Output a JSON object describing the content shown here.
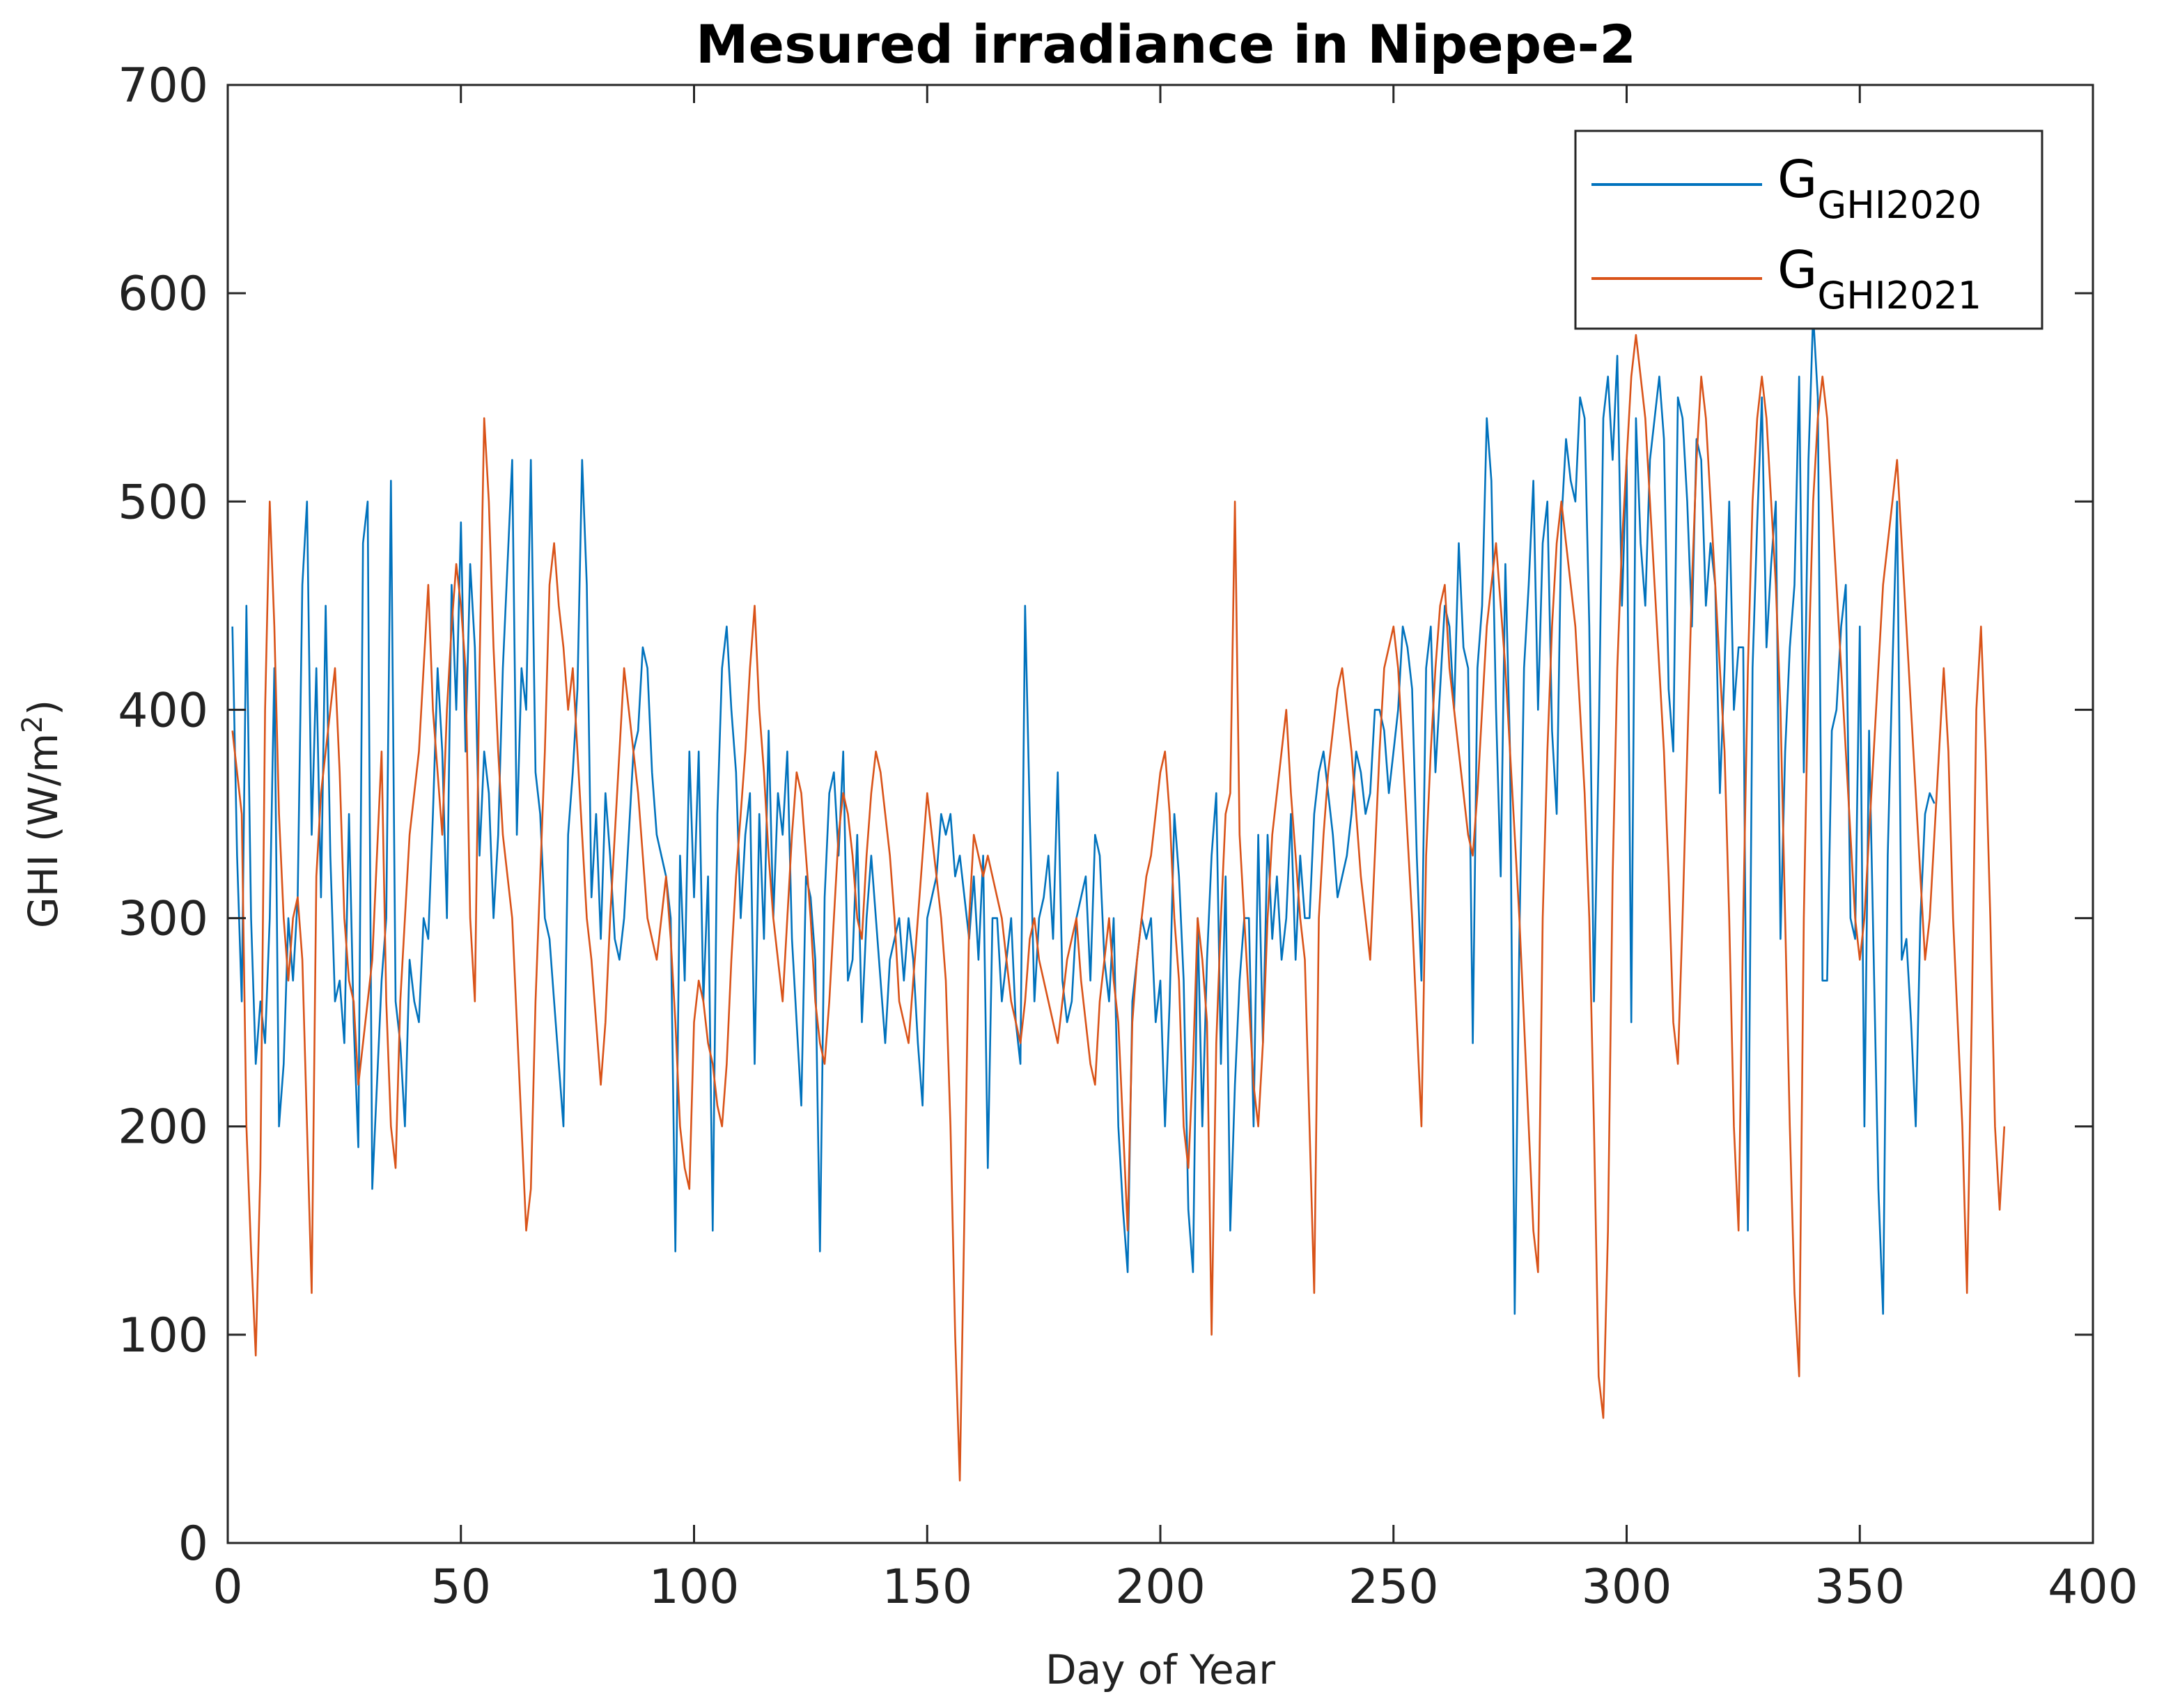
{
  "chart_data": {
    "type": "line",
    "title": "Mesured irradiance in Nipepe-2",
    "xlabel": "Day of Year",
    "ylabel": "GHI (W/m",
    "ylabel_sup": "2",
    "ylabel_close": ")",
    "xlim": [
      0,
      400
    ],
    "ylim": [
      0,
      700
    ],
    "xticks": [
      0,
      50,
      100,
      150,
      200,
      250,
      300,
      350,
      400
    ],
    "yticks": [
      0,
      100,
      200,
      300,
      400,
      500,
      600,
      700
    ],
    "grid": false,
    "legend_position": "top-right",
    "series": [
      {
        "name": "GGHI2020",
        "label_main": "G",
        "label_sub": "GHI2020",
        "color": "#0072BD",
        "x_start": 1,
        "values": [
          440,
          330,
          260,
          450,
          300,
          230,
          260,
          240,
          300,
          420,
          200,
          230,
          300,
          270,
          310,
          460,
          500,
          340,
          420,
          310,
          450,
          330,
          260,
          270,
          240,
          350,
          250,
          190,
          480,
          500,
          170,
          220,
          270,
          300,
          510,
          260,
          240,
          200,
          280,
          260,
          250,
          300,
          290,
          350,
          420,
          380,
          300,
          460,
          400,
          490,
          380,
          470,
          430,
          330,
          380,
          360,
          300,
          340,
          420,
          470,
          520,
          340,
          420,
          400,
          520,
          370,
          350,
          300,
          290,
          260,
          230,
          200,
          340,
          370,
          410,
          520,
          460,
          310,
          350,
          290,
          360,
          330,
          290,
          280,
          300,
          340,
          380,
          390,
          430,
          420,
          370,
          340,
          330,
          320,
          300,
          140,
          330,
          270,
          380,
          310,
          380,
          260,
          320,
          150,
          350,
          420,
          440,
          400,
          370,
          300,
          340,
          360,
          230,
          350,
          290,
          390,
          300,
          360,
          340,
          380,
          290,
          250,
          210,
          320,
          310,
          280,
          140,
          310,
          360,
          370,
          330,
          380,
          270,
          280,
          340,
          250,
          300,
          330,
          300,
          270,
          240,
          280,
          290,
          300,
          270,
          300,
          280,
          240,
          210,
          300,
          310,
          320,
          350,
          340,
          350,
          320,
          330,
          310,
          290,
          320,
          280,
          330,
          180,
          300,
          300,
          260,
          280,
          300,
          250,
          230,
          450,
          350,
          260,
          300,
          310,
          330,
          290,
          370,
          270,
          250,
          260,
          300,
          310,
          320,
          270,
          340,
          330,
          280,
          260,
          300,
          200,
          160,
          130,
          260,
          280,
          300,
          290,
          300,
          250,
          270,
          200,
          260,
          350,
          320,
          270,
          160,
          130,
          300,
          200,
          280,
          330,
          360,
          230,
          320,
          150,
          220,
          270,
          300,
          300,
          200,
          340,
          240,
          340,
          290,
          320,
          280,
          300,
          350,
          280,
          330,
          300,
          300,
          350,
          370,
          380,
          360,
          340,
          310,
          320,
          330,
          350,
          380,
          370,
          350,
          360,
          400,
          400,
          390,
          360,
          380,
          400,
          440,
          430,
          410,
          330,
          270,
          420,
          440,
          370,
          410,
          450,
          440,
          400,
          480,
          430,
          420,
          240,
          420,
          450,
          540,
          510,
          400,
          320,
          470,
          380,
          110,
          290,
          420,
          460,
          510,
          400,
          480,
          500,
          390,
          350,
          490,
          530,
          510,
          500,
          550,
          540,
          440,
          260,
          380,
          540,
          560,
          520,
          570,
          450,
          520,
          250,
          540,
          480,
          450,
          520,
          540,
          560,
          530,
          410,
          380,
          550,
          540,
          500,
          440,
          530,
          520,
          450,
          480,
          460,
          360,
          420,
          500,
          400,
          430,
          430,
          150,
          420,
          490,
          550,
          430,
          470,
          500,
          290,
          380,
          430,
          460,
          560,
          370,
          520,
          590,
          550,
          270,
          270,
          390,
          400,
          440,
          460,
          300,
          290,
          440,
          200,
          390,
          280,
          170,
          110,
          330,
          420,
          500,
          280,
          290,
          250,
          200,
          300,
          350,
          360,
          355
        ]
      },
      {
        "name": "GGHI2021",
        "label_main": "G",
        "label_sub": "GHI2021",
        "color": "#D95319",
        "x_start": 1,
        "values": [
          390,
          370,
          350,
          200,
          140,
          90,
          180,
          400,
          500,
          440,
          350,
          300,
          270,
          300,
          310,
          280,
          200,
          120,
          320,
          360,
          380,
          400,
          420,
          370,
          300,
          270,
          260,
          220,
          240,
          260,
          280,
          330,
          380,
          260,
          200,
          180,
          260,
          300,
          340,
          360,
          380,
          420,
          460,
          400,
          370,
          340,
          400,
          440,
          470,
          450,
          420,
          300,
          260,
          420,
          540,
          500,
          430,
          380,
          340,
          320,
          300,
          250,
          200,
          150,
          170,
          260,
          320,
          380,
          460,
          480,
          450,
          430,
          400,
          420,
          380,
          340,
          300,
          280,
          250,
          220,
          250,
          300,
          340,
          380,
          420,
          400,
          380,
          360,
          330,
          300,
          290,
          280,
          300,
          320,
          290,
          250,
          200,
          180,
          170,
          250,
          270,
          260,
          240,
          230,
          210,
          200,
          230,
          280,
          320,
          350,
          380,
          420,
          450,
          400,
          370,
          330,
          300,
          280,
          260,
          300,
          340,
          370,
          360,
          330,
          300,
          260,
          240,
          230,
          260,
          300,
          340,
          360,
          350,
          330,
          300,
          290,
          330,
          360,
          380,
          370,
          350,
          330,
          300,
          260,
          250,
          240,
          270,
          300,
          330,
          360,
          340,
          320,
          300,
          270,
          200,
          100,
          30,
          160,
          300,
          340,
          330,
          320,
          330,
          320,
          310,
          300,
          280,
          260,
          250,
          240,
          260,
          290,
          300,
          280,
          270,
          260,
          250,
          240,
          260,
          280,
          290,
          300,
          270,
          250,
          230,
          220,
          260,
          280,
          300,
          270,
          250,
          200,
          150,
          250,
          280,
          300,
          320,
          330,
          350,
          370,
          380,
          350,
          300,
          270,
          200,
          180,
          230,
          300,
          280,
          250,
          100,
          240,
          300,
          350,
          360,
          500,
          340,
          300,
          260,
          220,
          200,
          240,
          300,
          340,
          360,
          380,
          400,
          360,
          330,
          300,
          280,
          200,
          120,
          300,
          340,
          370,
          390,
          410,
          420,
          400,
          380,
          350,
          320,
          300,
          280,
          330,
          380,
          420,
          430,
          440,
          420,
          380,
          340,
          300,
          250,
          200,
          330,
          380,
          420,
          450,
          460,
          420,
          400,
          380,
          360,
          340,
          330,
          360,
          400,
          440,
          460,
          480,
          450,
          420,
          380,
          340,
          300,
          250,
          200,
          150,
          130,
          300,
          380,
          440,
          480,
          500,
          480,
          460,
          440,
          400,
          360,
          300,
          200,
          80,
          60,
          150,
          320,
          420,
          480,
          520,
          560,
          580,
          560,
          540,
          500,
          460,
          420,
          380,
          320,
          250,
          230,
          300,
          380,
          460,
          520,
          560,
          540,
          500,
          460,
          420,
          380,
          300,
          200,
          150,
          300,
          420,
          500,
          540,
          560,
          540,
          500,
          460,
          400,
          300,
          200,
          120,
          80,
          300,
          420,
          500,
          540,
          560,
          540,
          500,
          460,
          420,
          380,
          340,
          300,
          280,
          300,
          340,
          380,
          420,
          460,
          480,
          500,
          520,
          480,
          440,
          400,
          360,
          320,
          280,
          300,
          340,
          380,
          420,
          380,
          300,
          250,
          200,
          120,
          250,
          400,
          440,
          380,
          300,
          200,
          160,
          200
        ]
      }
    ]
  }
}
